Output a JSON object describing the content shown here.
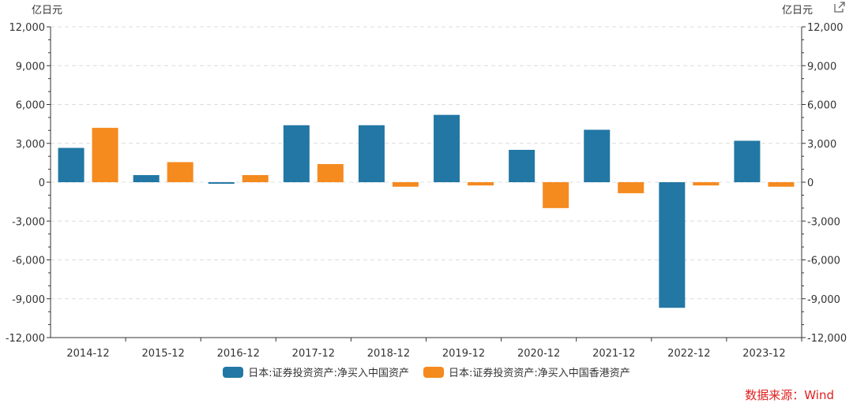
{
  "chart_data": {
    "type": "bar",
    "unit_left": "亿日元",
    "unit_right": "亿日元",
    "categories": [
      "2014-12",
      "2015-12",
      "2016-12",
      "2017-12",
      "2018-12",
      "2019-12",
      "2020-12",
      "2021-12",
      "2022-12",
      "2023-12"
    ],
    "series": [
      {
        "name": "日本:证券投资资产:净买入中国资产",
        "color": "#2277a4",
        "values": [
          2650,
          550,
          -120,
          4400,
          4400,
          5200,
          2500,
          4050,
          -9700,
          3200
        ]
      },
      {
        "name": "日本:证券投资资产:净买入中国香港资产",
        "color": "#f58a1f",
        "values": [
          4200,
          1550,
          550,
          1400,
          -350,
          -250,
          -2000,
          -850,
          -250,
          -350
        ]
      }
    ],
    "ylim": [
      -12000,
      12000
    ],
    "yticks": [
      12000,
      9000,
      6000,
      3000,
      0,
      -3000,
      -6000,
      -9000,
      -12000
    ],
    "ytick_labels": [
      "12,000",
      "9,000",
      "6,000",
      "3,000",
      "0",
      "-3,000",
      "-6,000",
      "-9,000",
      "-12,000"
    ],
    "grid": true,
    "legend_position": "bottom"
  },
  "source_text": "数据来源：Wind",
  "export_icon": "external-link-icon"
}
